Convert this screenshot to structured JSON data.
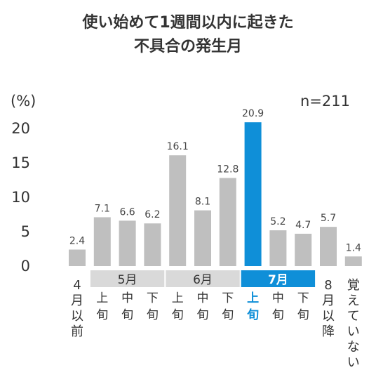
{
  "title_line1": "使い始めて1週間以内に起きた",
  "title_line2": "不具合の発生月",
  "unit_label": "(%)",
  "n_label": "n=211",
  "colors": {
    "bar": "#bfbfbf",
    "highlight": "#0f8fd8",
    "band": "#d9d9d9",
    "text": "#333333"
  },
  "chart_data": {
    "type": "bar",
    "title": "使い始めて1週間以内に起きた 不具合の発生月",
    "ylabel": "(%)",
    "ylim": [
      0,
      22
    ],
    "yticks": [
      0,
      5,
      10,
      15,
      20
    ],
    "categories": [
      "4月以前",
      "上旬",
      "中旬",
      "下旬",
      "上旬",
      "中旬",
      "下旬",
      "上旬",
      "中旬",
      "下旬",
      "8月以降",
      "覚えていない"
    ],
    "values": [
      2.4,
      7.1,
      6.6,
      6.2,
      16.1,
      8.1,
      12.8,
      20.9,
      5.2,
      4.7,
      5.7,
      1.4
    ],
    "value_labels": [
      "2.4",
      "7.1",
      "6.6",
      "6.2",
      "16.1",
      "8.1",
      "12.8",
      "20.9",
      "5.2",
      "4.7",
      "5.7",
      "1.4"
    ],
    "highlight_index": 7,
    "groups": [
      {
        "label": "5月",
        "start": 1,
        "end": 3,
        "highlight": false
      },
      {
        "label": "6月",
        "start": 4,
        "end": 6,
        "highlight": false
      },
      {
        "label": "7月",
        "start": 7,
        "end": 9,
        "highlight": true
      }
    ],
    "grid": false,
    "legend": "none"
  }
}
